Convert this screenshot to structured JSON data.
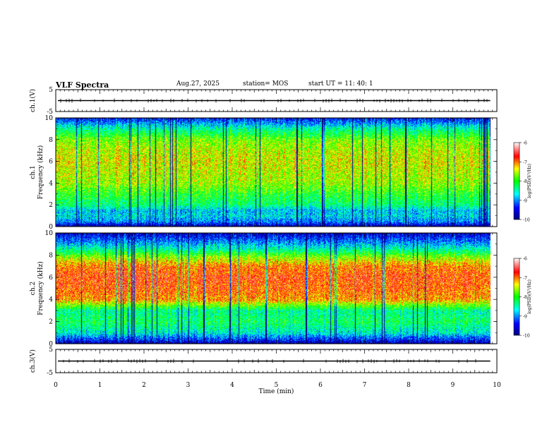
{
  "header": {
    "title": "VLF Spectra",
    "date": "Aug.27, 2025",
    "station": "station= MOS",
    "start_ut": "start  UT =  11: 40: 1"
  },
  "chart_data": [
    {
      "type": "line",
      "name": "ch1-waveform",
      "ylabel": "ch.1(V)",
      "ylim": [
        -5,
        5
      ],
      "yticks": [
        "5",
        "-5"
      ],
      "xlim": [
        0,
        10
      ],
      "level": 0
    },
    {
      "type": "heatmap",
      "name": "ch1-spectrogram",
      "ylabel": "ch.1\nFrequency (kHz)",
      "ylabel_lines": [
        "ch.1",
        "Frequency (kHz)"
      ],
      "ylim": [
        0,
        10
      ],
      "yticks": [
        "0",
        "2",
        "4",
        "6",
        "8",
        "10"
      ],
      "xlim": [
        0,
        10
      ],
      "data_end_x": 9.85,
      "band_profile": [
        {
          "f": 0.0,
          "v": -9.8
        },
        {
          "f": 0.5,
          "v": -9.0
        },
        {
          "f": 1.0,
          "v": -8.7
        },
        {
          "f": 1.5,
          "v": -8.8
        },
        {
          "f": 2.0,
          "v": -8.3
        },
        {
          "f": 3.0,
          "v": -8.0
        },
        {
          "f": 4.0,
          "v": -7.6
        },
        {
          "f": 5.0,
          "v": -7.5
        },
        {
          "f": 6.0,
          "v": -7.4
        },
        {
          "f": 7.0,
          "v": -7.5
        },
        {
          "f": 8.0,
          "v": -7.7
        },
        {
          "f": 9.0,
          "v": -8.4
        },
        {
          "f": 10.0,
          "v": -9.4
        }
      ]
    },
    {
      "type": "heatmap",
      "name": "ch2-spectrogram",
      "ylabel": "ch.2\nFrequency (kHz)",
      "ylabel_lines": [
        "ch.2",
        "Frequency (kHz)"
      ],
      "ylim": [
        0,
        10
      ],
      "yticks": [
        "0",
        "2",
        "4",
        "6",
        "8",
        "10"
      ],
      "xlim": [
        0,
        10
      ],
      "data_end_x": 9.85,
      "band_profile": [
        {
          "f": 0.0,
          "v": -9.8
        },
        {
          "f": 1.0,
          "v": -8.6
        },
        {
          "f": 2.0,
          "v": -8.2
        },
        {
          "f": 3.0,
          "v": -8.4
        },
        {
          "f": 4.0,
          "v": -7.1
        },
        {
          "f": 5.0,
          "v": -6.9
        },
        {
          "f": 6.0,
          "v": -6.8
        },
        {
          "f": 7.0,
          "v": -7.0
        },
        {
          "f": 7.8,
          "v": -7.6
        },
        {
          "f": 8.5,
          "v": -8.4
        },
        {
          "f": 9.2,
          "v": -9.0
        },
        {
          "f": 10.0,
          "v": -9.6
        }
      ]
    },
    {
      "type": "line",
      "name": "ch3-waveform",
      "ylabel": "ch.3(V)",
      "ylim": [
        -5,
        5
      ],
      "yticks": [
        "5",
        "-5"
      ],
      "xlim": [
        0,
        10
      ],
      "level": 0
    }
  ],
  "x_axis": {
    "label": "Time (min)",
    "ticks": [
      "0",
      "1",
      "2",
      "3",
      "4",
      "5",
      "6",
      "7",
      "8",
      "9",
      "10"
    ]
  },
  "colorbar": {
    "label": "log(PSD)(V²/Hz)",
    "range": [
      -10,
      -6
    ],
    "ticks": [
      "-6",
      "-7",
      "-8",
      "-9",
      "-10"
    ],
    "colors": [
      "#000080",
      "#0000ff",
      "#00ffff",
      "#00ff00",
      "#ffff00",
      "#ff0000",
      "#ffffff"
    ]
  }
}
